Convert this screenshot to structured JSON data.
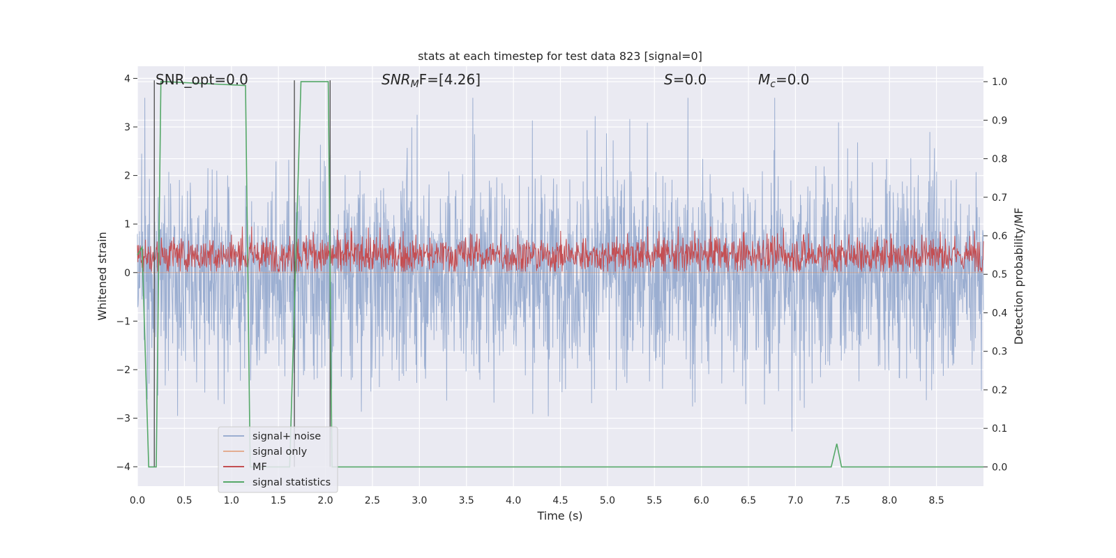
{
  "chart_data": {
    "type": "line",
    "title": "stats at each timestep for test data 823 [signal=0]",
    "xlabel": "Time (s)",
    "ylabel": "Whitened strain",
    "y2label": "Detection probability/MF",
    "xlim": [
      0.0,
      9.0
    ],
    "ylim": [
      -4.4,
      4.25
    ],
    "y2lim": [
      -0.05,
      1.04
    ],
    "x_ticks": [
      "0.0",
      "0.5",
      "1.0",
      "1.5",
      "2.0",
      "2.5",
      "3.0",
      "3.5",
      "4.0",
      "4.5",
      "5.0",
      "5.5",
      "6.0",
      "6.5",
      "7.0",
      "7.5",
      "8.0",
      "8.5"
    ],
    "y_ticks": [
      "4",
      "3",
      "2",
      "1",
      "0",
      "−1",
      "−2",
      "−3",
      "−4"
    ],
    "y2_ticks": [
      "1.0",
      "0.9",
      "0.8",
      "0.7",
      "0.6",
      "0.5",
      "0.4",
      "0.3",
      "0.2",
      "0.1",
      "0.0"
    ],
    "grid": true,
    "legend_position": "lower-left",
    "annotations": {
      "snr_opt": "SNR_opt=0.0",
      "snr_mf_base": "SNR",
      "snr_mf_sub": "M",
      "snr_mf_tail": "F=[4.26]",
      "s_it": "S",
      "s_val": "=0.0",
      "mc_it": "M",
      "mc_sub": "c",
      "mc_val": "=0.0"
    },
    "series": [
      {
        "name": "signal+ noise",
        "color": "#4c72b0",
        "axis": "left",
        "style": "dense noise, approx. range −3.8 to 3.6"
      },
      {
        "name": "signal only",
        "color": "#dd8452",
        "axis": "left",
        "values": [
          0,
          0
        ]
      },
      {
        "name": "MF",
        "color": "#c44e52",
        "axis": "left",
        "style": "dense band, approx. range 0.05 to 0.95"
      },
      {
        "name": "signal statistics",
        "color": "#55a868",
        "axis": "right",
        "x": [
          0.0,
          0.05,
          0.12,
          0.2,
          0.25,
          0.3,
          1.15,
          1.2,
          1.25,
          1.62,
          1.68,
          1.74,
          2.03,
          2.07,
          2.15,
          7.38,
          7.44,
          7.49,
          9.0
        ],
        "values": [
          0.55,
          0.57,
          0.0,
          0.0,
          1.0,
          1.0,
          0.99,
          0.0,
          0.0,
          0.0,
          0.5,
          1.0,
          1.0,
          0.0,
          0.0,
          0.0,
          0.06,
          0.0,
          0.0
        ]
      }
    ],
    "markers_x": [
      0.18,
      1.67,
      2.05
    ]
  }
}
